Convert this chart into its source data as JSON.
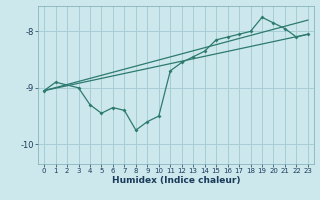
{
  "xlabel": "Humidex (Indice chaleur)",
  "bg_color": "#cce8ec",
  "grid_color": "#a8cdd4",
  "line_color": "#2d7a6e",
  "xlim": [
    -0.5,
    23.5
  ],
  "ylim": [
    -10.35,
    -7.55
  ],
  "yticks": [
    -10,
    -9,
    -8
  ],
  "xticks": [
    0,
    1,
    2,
    3,
    4,
    5,
    6,
    7,
    8,
    9,
    10,
    11,
    12,
    13,
    14,
    15,
    16,
    17,
    18,
    19,
    20,
    21,
    22,
    23
  ],
  "line1_x": [
    0,
    1,
    3,
    4,
    5,
    6,
    7,
    8,
    9,
    10,
    11,
    12,
    13,
    14,
    15,
    16,
    17,
    18,
    19,
    20,
    21,
    22,
    23
  ],
  "line1_y": [
    -9.05,
    -8.9,
    -9.0,
    -9.3,
    -9.45,
    -9.35,
    -9.4,
    -9.75,
    -9.6,
    -9.5,
    -8.7,
    -8.55,
    -8.45,
    -8.35,
    -8.15,
    -8.1,
    -8.05,
    -8.0,
    -7.75,
    -7.85,
    -7.95,
    -8.1,
    -8.05
  ],
  "line2_x": [
    0,
    23
  ],
  "line2_y": [
    -9.05,
    -8.05
  ],
  "line3_x": [
    0,
    23
  ],
  "line3_y": [
    -9.05,
    -7.8
  ]
}
